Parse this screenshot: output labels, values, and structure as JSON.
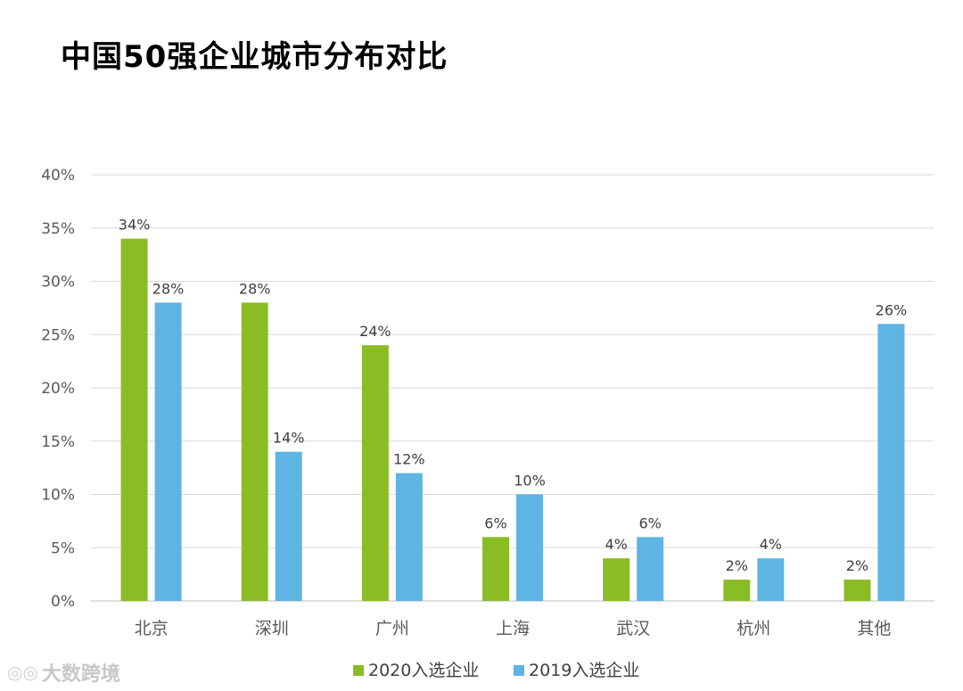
{
  "title": "中国50强企业城市分布对比",
  "watermark": "大数跨境",
  "chart_data": {
    "type": "bar",
    "categories": [
      "北京",
      "深圳",
      "广州",
      "上海",
      "武汉",
      "杭州",
      "其他"
    ],
    "series": [
      {
        "name": "2020入选企业",
        "values": [
          34,
          28,
          24,
          6,
          4,
          2,
          2
        ],
        "color": "#8abd24"
      },
      {
        "name": "2019入选企业",
        "values": [
          28,
          14,
          12,
          10,
          6,
          4,
          26
        ],
        "color": "#5eb4e3"
      }
    ],
    "ylim": [
      0,
      40
    ],
    "yticks": [
      "0%",
      "5%",
      "10%",
      "15%",
      "20%",
      "25%",
      "30%",
      "35%",
      "40%"
    ],
    "data_labels": [
      [
        "34%",
        "28%",
        "24%",
        "6%",
        "4%",
        "2%",
        "2%"
      ],
      [
        "28%",
        "14%",
        "12%",
        "10%",
        "6%",
        "4%",
        "26%"
      ]
    ],
    "grid": true,
    "legend": "bottom"
  }
}
